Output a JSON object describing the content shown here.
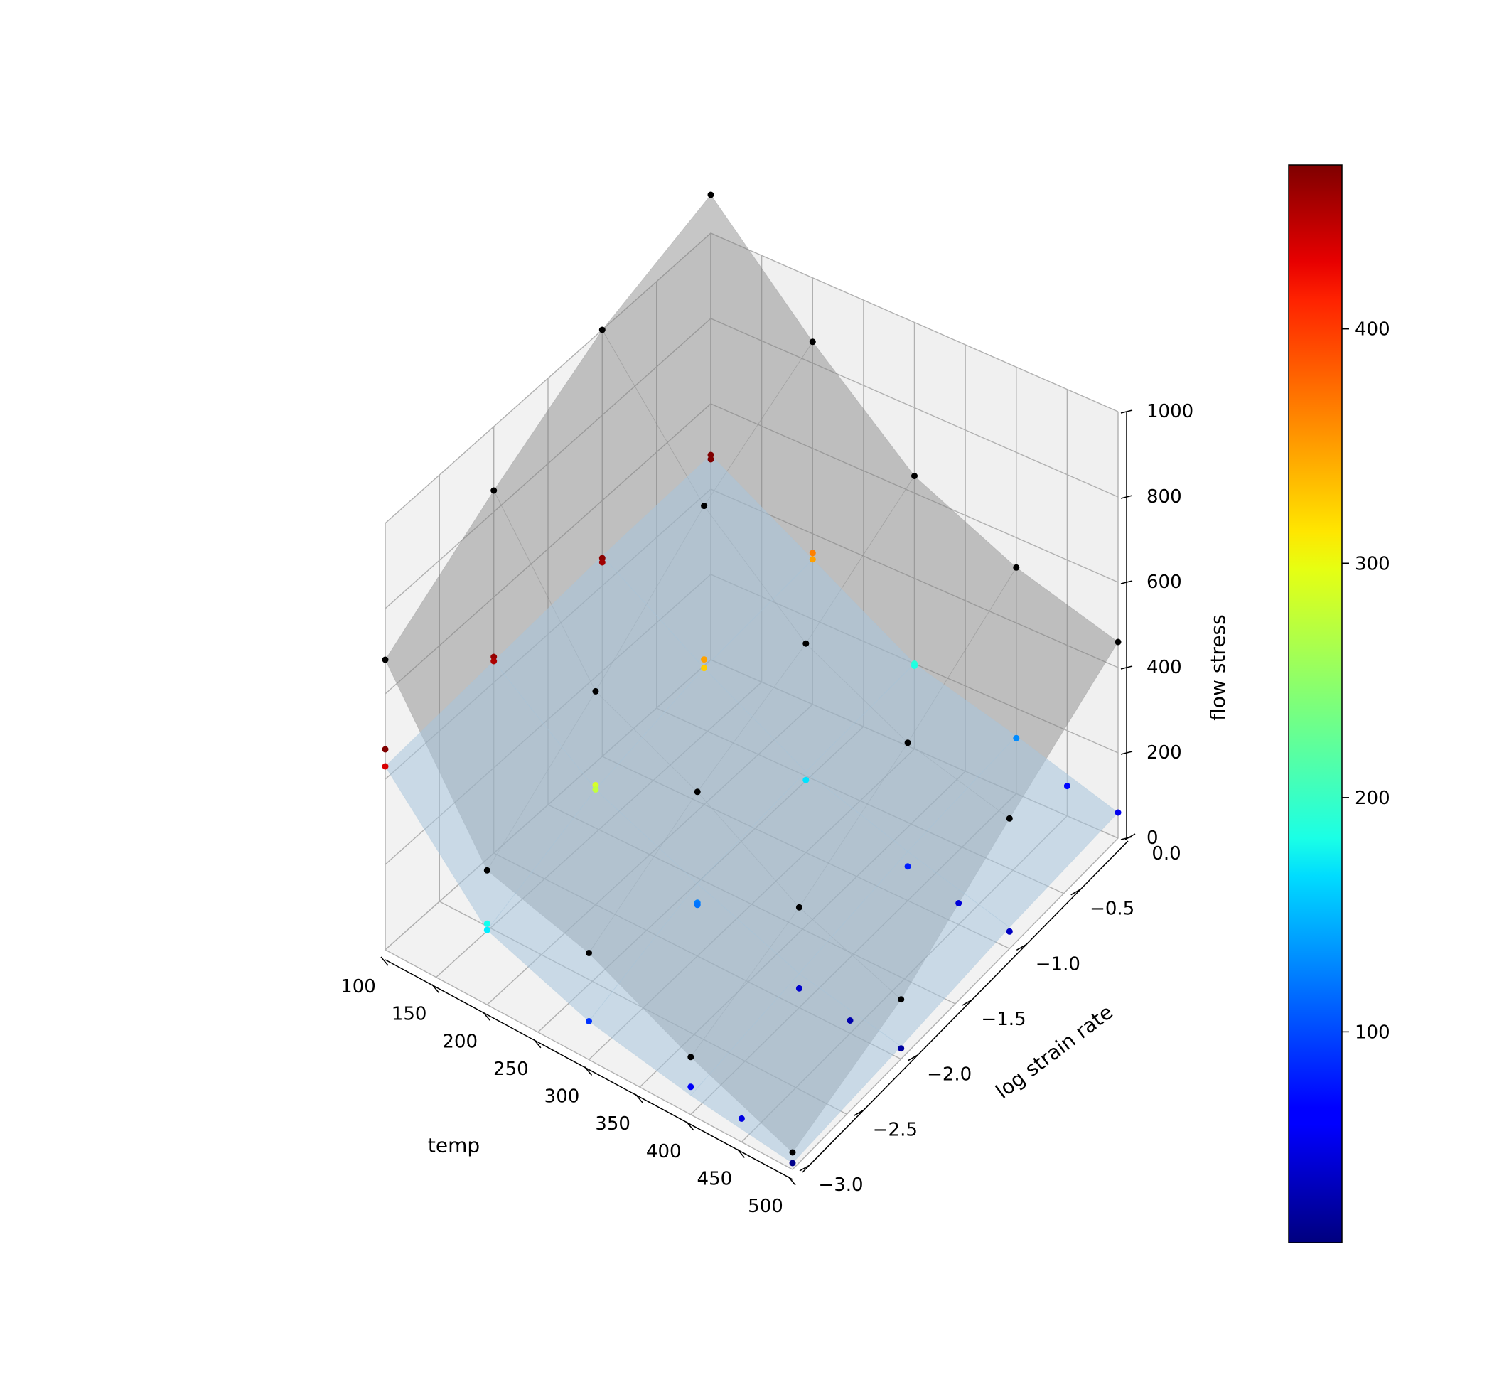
{
  "chart_data": {
    "type": "scatter3d_surface",
    "axes": {
      "x": {
        "label": "temp",
        "range": [
          100,
          500
        ],
        "ticks": [
          100,
          150,
          200,
          250,
          300,
          350,
          400,
          450,
          500
        ]
      },
      "y": {
        "label": "log strain rate",
        "range": [
          -3.0,
          0.0
        ],
        "ticks": [
          -3.0,
          -2.5,
          -2.0,
          -1.5,
          -1.0,
          -0.5,
          0.0
        ],
        "tick_labels": [
          "−3.0",
          "−2.5",
          "−2.0",
          "−1.5",
          "−1.0",
          "−0.5",
          "0.0"
        ]
      },
      "z": {
        "label": "flow stress",
        "range": [
          0,
          1000
        ],
        "ticks": [
          0,
          200,
          400,
          600,
          800,
          1000
        ]
      }
    },
    "grid": true,
    "colorbar": {
      "colormap": "jet",
      "range": [
        10,
        470
      ],
      "ticks": [
        100,
        200,
        300,
        400
      ]
    },
    "grid_temps": [
      100,
      200,
      300,
      400,
      500
    ],
    "grid_rates": [
      -3.0,
      -2.0,
      -1.0,
      0.0
    ],
    "surfaces": [
      {
        "name": "",
        "color": "#808080",
        "opacity": 0.45,
        "z": [
          [
            680,
            850,
            1000,
            1090
          ],
          [
            315,
            500,
            700,
            850
          ],
          [
            250,
            385,
            490,
            640
          ],
          [
            135,
            235,
            370,
            530
          ],
          [
            40,
            140,
            305,
            460
          ]
        ]
      },
      {
        "name": "",
        "color": "#a8c4dc",
        "opacity": 0.55,
        "z": [
          [
            430,
            450,
            470,
            480
          ],
          [
            175,
            270,
            320,
            340
          ],
          [
            90,
            170,
            190,
            200
          ],
          [
            45,
            80,
            115,
            135
          ],
          [
            15,
            30,
            50,
            60
          ]
        ]
      }
    ],
    "points_black": [
      [
        100,
        -3.0,
        680
      ],
      [
        200,
        -3.0,
        315
      ],
      [
        300,
        -3.0,
        250
      ],
      [
        400,
        -3.0,
        135
      ],
      [
        500,
        -3.0,
        40
      ],
      [
        100,
        -2.0,
        850
      ],
      [
        200,
        -2.0,
        500
      ],
      [
        300,
        -2.0,
        385
      ],
      [
        400,
        -2.0,
        235
      ],
      [
        500,
        -2.0,
        140
      ],
      [
        100,
        -1.0,
        1000
      ],
      [
        200,
        -1.0,
        700
      ],
      [
        300,
        -1.0,
        490
      ],
      [
        400,
        -1.0,
        370
      ],
      [
        500,
        -1.0,
        305
      ],
      [
        100,
        0.0,
        1090
      ],
      [
        200,
        0.0,
        850
      ],
      [
        300,
        0.0,
        640
      ],
      [
        400,
        0.0,
        530
      ],
      [
        500,
        0.0,
        460
      ]
    ],
    "points_colored": [
      [
        100,
        -3.0,
        470
      ],
      [
        100,
        -3.0,
        430
      ],
      [
        100,
        -2.0,
        460
      ],
      [
        100,
        -2.0,
        450
      ],
      [
        100,
        -1.0,
        465
      ],
      [
        100,
        -1.0,
        455
      ],
      [
        100,
        0.0,
        470
      ],
      [
        100,
        0.0,
        480
      ],
      [
        200,
        -3.0,
        190
      ],
      [
        200,
        -3.0,
        175
      ],
      [
        200,
        -2.0,
        280
      ],
      [
        200,
        -2.0,
        270
      ],
      [
        200,
        -1.0,
        340
      ],
      [
        200,
        -1.0,
        320
      ],
      [
        200,
        0.0,
        340
      ],
      [
        200,
        0.0,
        355
      ],
      [
        300,
        -3.0,
        90
      ],
      [
        300,
        -2.0,
        125
      ],
      [
        300,
        -2.0,
        120
      ],
      [
        300,
        -1.0,
        170
      ],
      [
        300,
        0.0,
        200
      ],
      [
        300,
        0.0,
        195
      ],
      [
        400,
        -3.0,
        65
      ],
      [
        400,
        -2.0,
        45
      ],
      [
        400,
        -1.0,
        80
      ],
      [
        400,
        0.0,
        130
      ],
      [
        450,
        -3.0,
        55
      ],
      [
        450,
        -2.0,
        30
      ],
      [
        450,
        -1.0,
        50
      ],
      [
        450,
        0.0,
        70
      ],
      [
        500,
        -3.0,
        15
      ],
      [
        500,
        -2.0,
        25
      ],
      [
        500,
        -1.0,
        40
      ],
      [
        500,
        0.0,
        60
      ]
    ]
  }
}
